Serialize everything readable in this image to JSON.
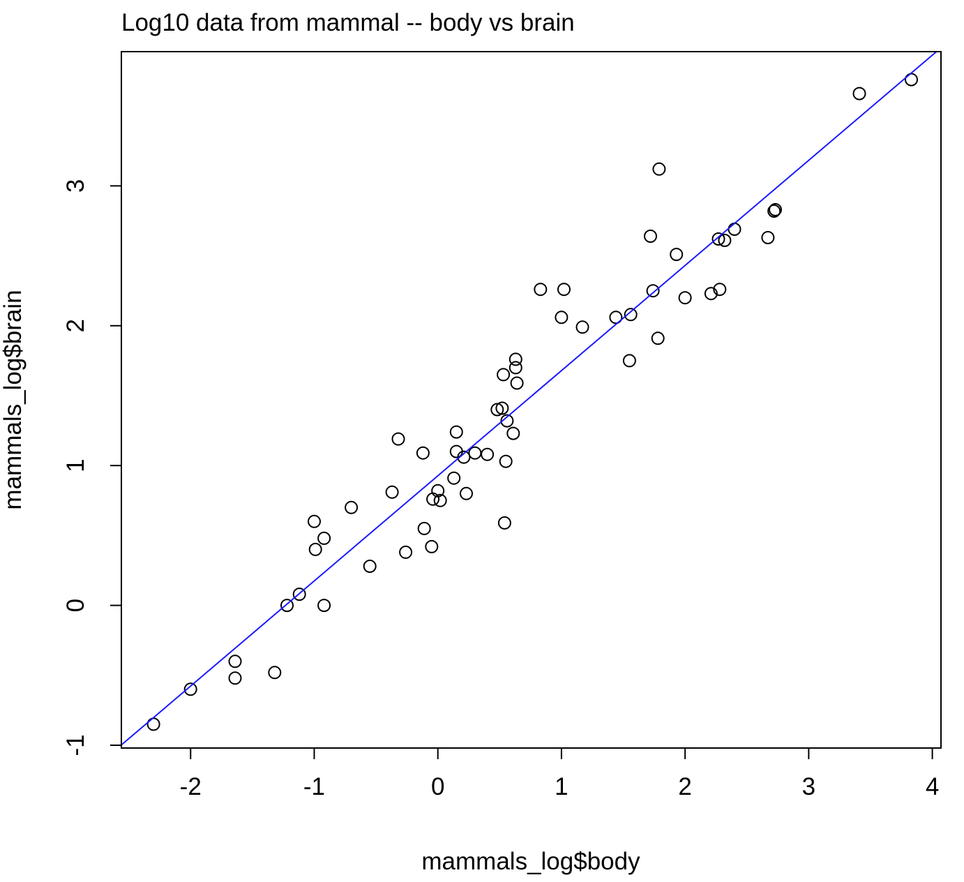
{
  "chart_data": {
    "type": "scatter",
    "title": "Log10 data from mammal -- body vs brain",
    "xlabel": "mammals_log$body",
    "ylabel": "mammals_log$brain",
    "xlim": [
      -2.56,
      4.07
    ],
    "ylim": [
      -1.02,
      3.96
    ],
    "xticks": [
      -2,
      -1,
      0,
      1,
      2,
      3,
      4
    ],
    "yticks": [
      -1,
      0,
      1,
      2,
      3
    ],
    "xtick_labels": [
      "-2",
      "-1",
      "0",
      "1",
      "2",
      "3",
      "4"
    ],
    "ytick_labels": [
      "-1",
      "0",
      "1",
      "2",
      "3"
    ],
    "grid": false,
    "legend": "none",
    "colors": {
      "points": "#000000",
      "fit_line": "#1a1aff",
      "axes": "#000000"
    },
    "fit_line": {
      "intercept": 0.927,
      "slope": 0.752
    },
    "series": [
      {
        "x": [
          -2.3,
          -2.0,
          -1.64,
          -1.64,
          -1.32,
          -1.22,
          -1.12,
          -1.0,
          -0.99,
          -0.92,
          -0.92,
          -0.7,
          -0.55,
          -0.37,
          -0.32,
          -0.26,
          -0.12,
          -0.11,
          -0.05,
          -0.04,
          0.0,
          0.02,
          0.13,
          0.15,
          0.15,
          0.21,
          0.23,
          0.3,
          0.4,
          0.48,
          0.52,
          0.53,
          0.54,
          0.55,
          0.56,
          0.61,
          0.63,
          0.63,
          0.64,
          0.83,
          1.0,
          1.02,
          1.17,
          1.44,
          1.55,
          1.56,
          1.72,
          1.74,
          1.78,
          1.79,
          1.93,
          2.0,
          2.21,
          2.27,
          2.28,
          2.32,
          2.4,
          2.67,
          2.72,
          2.73,
          3.41,
          3.83
        ],
        "y": [
          -0.85,
          -0.6,
          -0.4,
          -0.52,
          -0.48,
          0.0,
          0.08,
          0.6,
          0.4,
          0.0,
          0.48,
          0.7,
          0.28,
          0.81,
          1.19,
          0.38,
          1.09,
          0.55,
          0.42,
          0.76,
          0.82,
          0.75,
          0.91,
          1.24,
          1.1,
          1.06,
          0.8,
          1.09,
          1.08,
          1.4,
          1.41,
          1.65,
          0.59,
          1.03,
          1.32,
          1.23,
          1.76,
          1.7,
          1.59,
          2.26,
          2.06,
          2.26,
          1.99,
          2.06,
          1.75,
          2.08,
          2.64,
          2.25,
          1.91,
          3.12,
          2.51,
          2.2,
          2.23,
          2.62,
          2.26,
          2.61,
          2.69,
          2.63,
          2.82,
          2.83,
          3.66,
          3.76
        ]
      }
    ]
  }
}
